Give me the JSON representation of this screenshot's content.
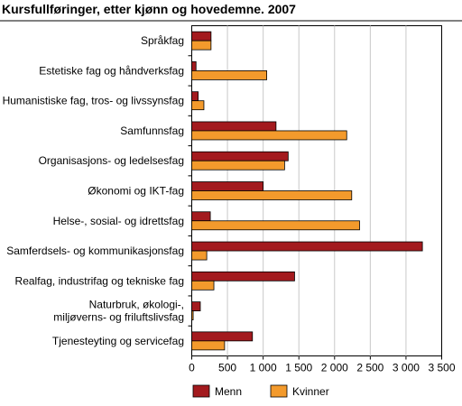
{
  "chart_data": {
    "type": "bar",
    "orientation": "horizontal",
    "title": "Kursfullføringer, etter kjønn og hovedemne. 2007",
    "categories": [
      [
        "Språkfag"
      ],
      [
        "Estetiske fag og håndverksfag"
      ],
      [
        "Humanistiske fag, tros- og livssynsfag"
      ],
      [
        "Samfunnsfag"
      ],
      [
        "Organisasjons- og ledelsesfag"
      ],
      [
        "Økonomi og IKT-fag"
      ],
      [
        "Helse-, sosial- og idrettsfag"
      ],
      [
        "Samferdsels- og kommunikasjonsfag"
      ],
      [
        "Realfag, industrifag og tekniske fag"
      ],
      [
        "Naturbruk, økologi-,",
        "miljøverns- og friluftslivsfag"
      ],
      [
        "Tjenesteyting og servicefag"
      ]
    ],
    "series": [
      {
        "name": "Menn",
        "color": "#a31a1e",
        "values": [
          270,
          60,
          90,
          1180,
          1350,
          1000,
          260,
          3230,
          1440,
          120,
          850
        ]
      },
      {
        "name": "Kvinner",
        "color": "#f39a2c",
        "values": [
          270,
          1050,
          170,
          2170,
          1300,
          2240,
          2350,
          210,
          310,
          20,
          460
        ]
      }
    ],
    "xlim": [
      0,
      3500
    ],
    "xticks": [
      0,
      500,
      1000,
      1500,
      2000,
      2500,
      3000,
      3500
    ],
    "xtick_labels": [
      "0",
      "500",
      "1 000",
      "1 500",
      "2 000",
      "2 500",
      "3 000",
      "3 500"
    ],
    "grid": true,
    "legend_position": "bottom"
  }
}
